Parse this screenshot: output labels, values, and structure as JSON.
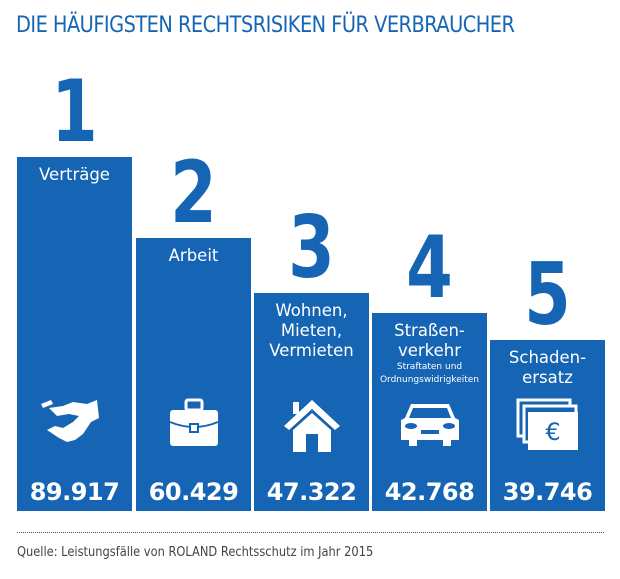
{
  "chart_data": {
    "type": "bar",
    "title": "DIE HÄUFIGSTEN RECHTSRISIKEN FÜR VERBRAUCHER",
    "categories": [
      "Verträge",
      "Arbeit",
      "Wohnen, Mieten, Vermieten",
      "Straßenverkehr",
      "Schadenersatz"
    ],
    "values": [
      89917,
      60429,
      47322,
      42768,
      39746
    ],
    "value_labels": [
      "89.917",
      "60.429",
      "47.322",
      "42.768",
      "39.746"
    ],
    "ranks": [
      "1",
      "2",
      "3",
      "4",
      "5"
    ],
    "labels": [
      {
        "lines": [
          "Verträge"
        ],
        "sub": []
      },
      {
        "lines": [
          "Arbeit"
        ],
        "sub": []
      },
      {
        "lines": [
          "Wohnen,",
          "Mieten,",
          "Vermieten"
        ],
        "sub": []
      },
      {
        "lines": [
          "Straßen-",
          "verkehr"
        ],
        "sub": [
          "Straftaten und",
          "Ordnungswidrigkeiten"
        ]
      },
      {
        "lines": [
          "Schaden-",
          "ersatz"
        ],
        "sub": []
      }
    ],
    "icons": [
      "handshake-icon",
      "briefcase-icon",
      "house-icon",
      "car-icon",
      "euro-banknotes-icon"
    ],
    "xlabel": "",
    "ylabel": "",
    "grid": false,
    "legend": "none",
    "source": "Quelle: Leistungsfälle von ROLAND Rechtsschutz im Jahr 2015"
  },
  "colors": {
    "bar": "#1565b4",
    "title": "#1565b4",
    "text_on_bar": "#ffffff",
    "source": "#444444"
  }
}
